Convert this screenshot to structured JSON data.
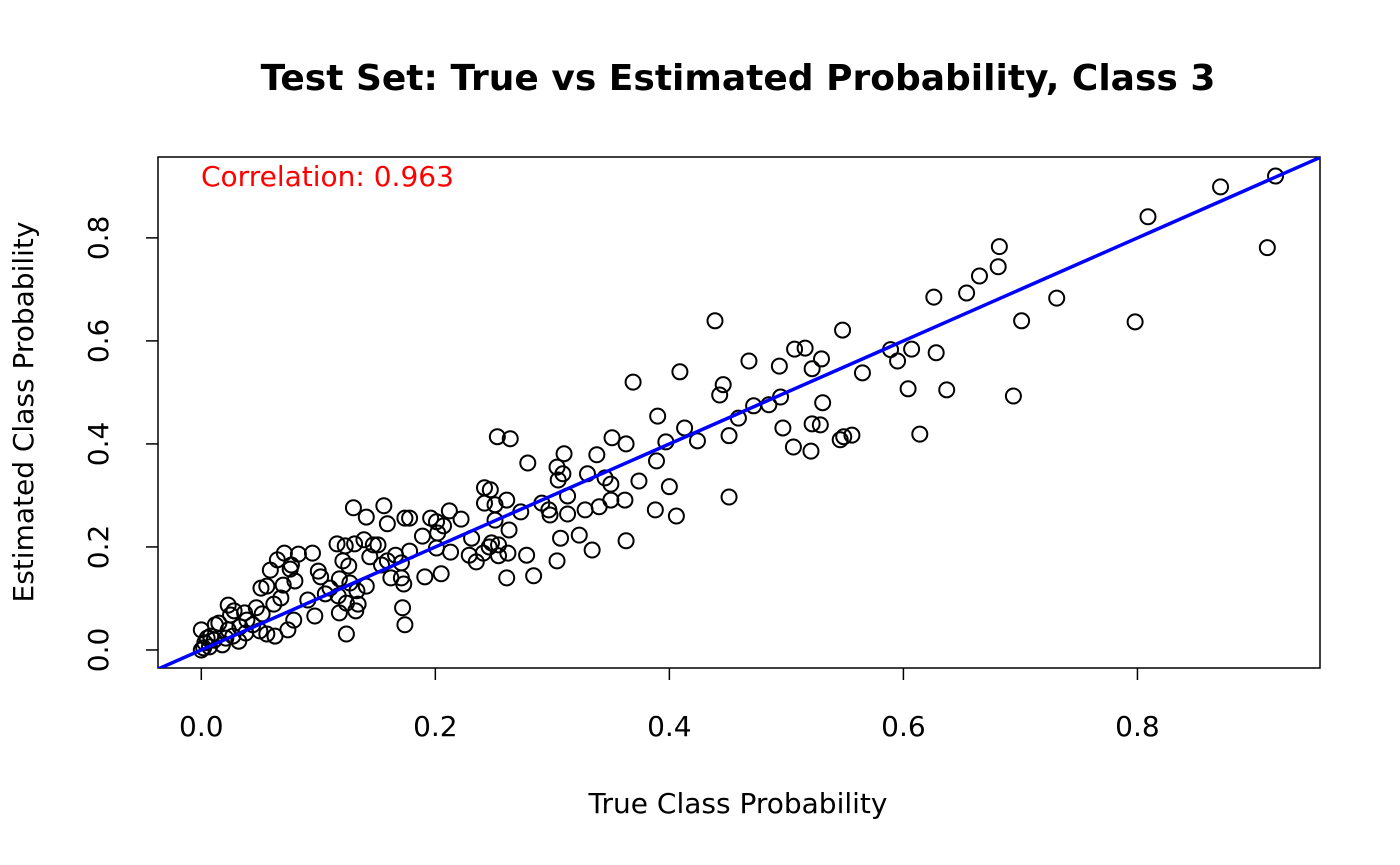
{
  "chart_data": {
    "type": "scatter",
    "title": "Test Set: True vs Estimated Probability, Class 3",
    "xlabel": "True Class Probability",
    "ylabel": "Estimated Class Probability",
    "annotation": {
      "text": "Correlation: 0.963",
      "color": "#ff0000"
    },
    "abline": {
      "intercept": 0,
      "slope": 1,
      "color": "#0000ff"
    },
    "color": "#000000",
    "xlim": [
      -0.037,
      0.956
    ],
    "ylim": [
      -0.035,
      0.957
    ],
    "xticks": [
      {
        "value": 0,
        "label": "0.0"
      },
      0.2,
      0.4,
      0.6,
      0.8
    ],
    "yticks": [
      {
        "value": 0,
        "label": "0.0"
      },
      0.2,
      0.4,
      0.6,
      0.8
    ],
    "x": [
      0.918,
      0.871,
      0.809,
      0.911,
      0.682,
      0.681,
      0.665,
      0.654,
      0.626,
      0.731,
      0.798,
      0.701,
      0.439,
      0.548,
      0.589,
      0.607,
      0.507,
      0.516,
      0.628,
      0.53,
      0.468,
      0.595,
      0.522,
      0.494,
      0.369,
      0.409,
      0.565,
      0.446,
      0.443,
      0.604,
      0.637,
      0.694,
      0.495,
      0.485,
      0.472,
      0.531,
      0.39,
      0.459,
      0.522,
      0.529,
      0.497,
      0.413,
      0.614,
      0.556,
      0.549,
      0.546,
      0.451,
      0.424,
      0.397,
      0.253,
      0.264,
      0.351,
      0.363,
      0.506,
      0.521,
      0.338,
      0.31,
      0.389,
      0.279,
      0.304,
      0.309,
      0.33,
      0.305,
      0.374,
      0.345,
      0.35,
      0.4,
      0.242,
      0.247,
      0.313,
      0.362,
      0.35,
      0.261,
      0.242,
      0.291,
      0.451,
      0.251,
      0.34,
      0.13,
      0.156,
      0.297,
      0.328,
      0.388,
      0.273,
      0.313,
      0.298,
      0.406,
      0.212,
      0.141,
      0.174,
      0.178,
      0.196,
      0.222,
      0.251,
      0.201,
      0.207,
      0.159,
      0.263,
      0.202,
      0.189,
      0.231,
      0.307,
      0.323,
      0.139,
      0.363,
      0.248,
      0.116,
      0.123,
      0.131,
      0.147,
      0.151,
      0.246,
      0.254,
      0.201,
      0.334,
      0.178,
      0.071,
      0.095,
      0.083,
      0.241,
      0.262,
      0.278,
      0.254,
      0.229,
      0.213,
      0.166,
      0.144,
      0.159,
      0.121,
      0.171,
      0.235,
      0.304,
      0.065,
      0.077,
      0.126,
      0.154,
      0.076,
      0.1,
      0.059,
      0.205,
      0.162,
      0.171,
      0.191,
      0.261,
      0.284,
      0.102,
      0.118,
      0.127,
      0.08,
      0.173,
      0.056,
      0.07,
      0.051,
      0.11,
      0.141,
      0.106,
      0.117,
      0.133,
      0.091,
      0.068,
      0.134,
      0.124,
      0.172,
      0.047,
      0.062,
      0.028,
      0.037,
      0.118,
      0.132,
      0.097,
      0.039,
      0.079,
      0.174,
      0.074,
      0.124,
      0.063,
      0.056,
      0.015,
      0.023,
      0.032,
      0.008,
      0,
      0.003,
      0.011,
      0.018,
      0,
      0.002,
      0.007,
      0.021,
      0.033,
      0.044,
      0.025,
      0.052,
      0.012,
      0.005,
      0.027,
      0.038,
      0.05,
      0.023
    ],
    "values": [
      0.92,
      0.899,
      0.841,
      0.781,
      0.783,
      0.744,
      0.726,
      0.693,
      0.685,
      0.683,
      0.637,
      0.639,
      0.639,
      0.621,
      0.583,
      0.584,
      0.584,
      0.586,
      0.577,
      0.565,
      0.561,
      0.561,
      0.546,
      0.551,
      0.52,
      0.54,
      0.538,
      0.515,
      0.495,
      0.507,
      0.505,
      0.493,
      0.491,
      0.476,
      0.474,
      0.48,
      0.454,
      0.45,
      0.439,
      0.437,
      0.431,
      0.431,
      0.419,
      0.417,
      0.414,
      0.408,
      0.416,
      0.406,
      0.404,
      0.414,
      0.41,
      0.412,
      0.4,
      0.394,
      0.386,
      0.379,
      0.381,
      0.367,
      0.363,
      0.355,
      0.342,
      0.342,
      0.33,
      0.328,
      0.334,
      0.322,
      0.317,
      0.315,
      0.311,
      0.299,
      0.291,
      0.291,
      0.291,
      0.285,
      0.285,
      0.297,
      0.282,
      0.278,
      0.276,
      0.28,
      0.272,
      0.272,
      0.272,
      0.268,
      0.264,
      0.262,
      0.26,
      0.27,
      0.258,
      0.256,
      0.256,
      0.256,
      0.254,
      0.252,
      0.249,
      0.241,
      0.245,
      0.233,
      0.227,
      0.221,
      0.217,
      0.217,
      0.223,
      0.214,
      0.212,
      0.208,
      0.206,
      0.202,
      0.206,
      0.204,
      0.204,
      0.2,
      0.204,
      0.198,
      0.194,
      0.192,
      0.188,
      0.188,
      0.186,
      0.188,
      0.188,
      0.184,
      0.183,
      0.184,
      0.19,
      0.184,
      0.181,
      0.173,
      0.173,
      0.169,
      0.171,
      0.173,
      0.175,
      0.165,
      0.163,
      0.165,
      0.157,
      0.153,
      0.155,
      0.148,
      0.14,
      0.14,
      0.142,
      0.14,
      0.144,
      0.142,
      0.138,
      0.13,
      0.134,
      0.128,
      0.124,
      0.126,
      0.12,
      0.12,
      0.124,
      0.109,
      0.105,
      0.115,
      0.097,
      0.101,
      0.089,
      0.091,
      0.082,
      0.082,
      0.089,
      0.076,
      0.072,
      0.072,
      0.076,
      0.066,
      0.058,
      0.058,
      0.049,
      0.039,
      0.031,
      0.027,
      0.031,
      0.052,
      0.039,
      0.017,
      0.027,
      0.039,
      0.014,
      0.019,
      0.01,
      0,
      0.004,
      0.006,
      0.023,
      0.045,
      0.049,
      0.068,
      0.07,
      0.049,
      0.023,
      0.027,
      0.033,
      0.037,
      0.087
    ]
  }
}
